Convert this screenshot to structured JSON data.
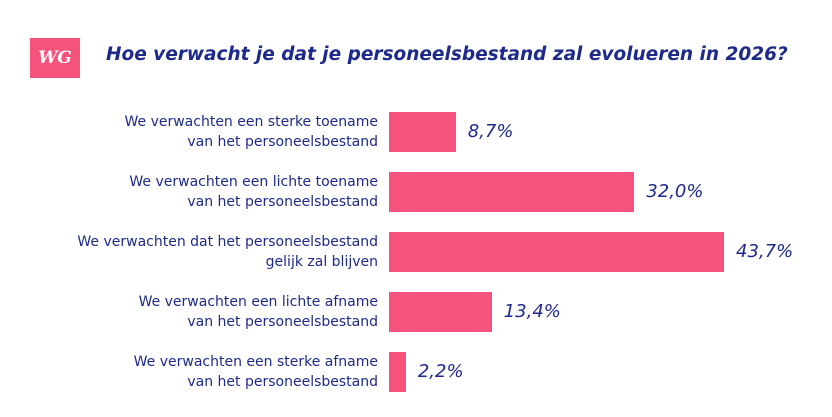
{
  "logo": "WG",
  "chart_data": {
    "type": "bar",
    "orientation": "horizontal",
    "title": "Hoe verwacht je dat je personeelsbestand zal evolueren in 2026?",
    "categories": [
      "We verwachten een sterke toename\nvan het personeelsbestand",
      "We verwachten een lichte toename\nvan het personeelsbestand",
      "We verwachten dat het personeelsbestand\ngelijk zal blijven",
      "We verwachten een lichte afname\nvan het personeelsbestand",
      "We verwachten een sterke afname\nvan het personeelsbestand"
    ],
    "values": [
      8.7,
      32.0,
      43.7,
      13.4,
      2.2
    ],
    "value_labels": [
      "8,7%",
      "32,0%",
      "43,7%",
      "13,4%",
      "2,2%"
    ],
    "color": "#f5537c"
  }
}
